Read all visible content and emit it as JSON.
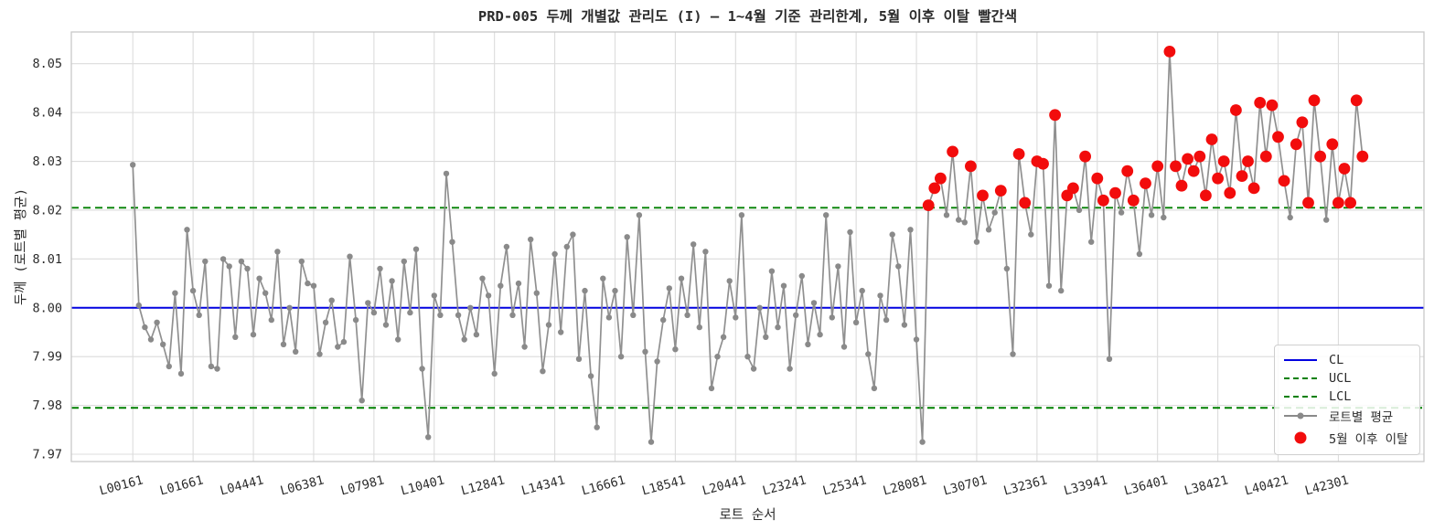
{
  "figure": {
    "title": "PRD-005 두께 개별값 관리도 (I) – 1~4월 기준 관리한계, 5월 이후 이탈 빨간색",
    "xlabel": "로트 순서",
    "ylabel": "두께 (로트별 평균)"
  },
  "colors": {
    "cl_blue": "#0202e0",
    "limit_green": "#008000",
    "series_gray": "#8a8a8a",
    "out_red": "#f20c0c",
    "grid": "#dcdcdc",
    "spine": "#c8c8c8",
    "text": "#2b2b2b"
  },
  "legend": {
    "items": [
      {
        "label": "CL",
        "type": "solid-line",
        "color": "#0202e0"
      },
      {
        "label": "UCL",
        "type": "dashed-line",
        "color": "#008000"
      },
      {
        "label": "LCL",
        "type": "dashed-line",
        "color": "#008000"
      },
      {
        "label": "로트별 평균",
        "type": "line-with-marker",
        "color": "#8a8a8a"
      },
      {
        "label": "5월 이후 이탈",
        "type": "dot",
        "color": "#f20c0c"
      }
    ]
  },
  "chart_data": {
    "type": "line",
    "title": "PRD-005 두께 개별값 관리도 (I) – 1~4월 기준 관리한계, 5월 이후 이탈 빨간색",
    "xlabel": "로트 순서",
    "ylabel": "두께 (로트별 평균)",
    "grid": true,
    "legend_position": "lower right",
    "cl": 8.0,
    "ucl": 8.0205,
    "lcl": 7.9795,
    "ylim": [
      7.9685,
      8.0565
    ],
    "y_ticks": [
      7.97,
      7.98,
      7.99,
      8.0,
      8.01,
      8.02,
      8.03,
      8.04,
      8.05
    ],
    "x_tick_every": 10,
    "x_tick_labels": [
      "L00161",
      "L01661",
      "L04441",
      "L06381",
      "L07981",
      "L10401",
      "L12841",
      "L14341",
      "L16661",
      "L18541",
      "L20441",
      "L23241",
      "L25341",
      "L28081",
      "L30701",
      "L32361",
      "L33941",
      "L36401",
      "L38421",
      "L40421",
      "L42301"
    ],
    "phase2_start_index": 132,
    "out_rule": "point is red when index >= phase2_start_index (May onward) and value > ucl",
    "series": [
      {
        "name": "로트별 평균",
        "values": [
          8.0293,
          8.0005,
          7.996,
          7.9935,
          7.997,
          7.9925,
          7.988,
          8.003,
          7.9865,
          8.016,
          8.0035,
          7.9985,
          8.0095,
          7.988,
          7.9875,
          8.01,
          8.0085,
          7.994,
          8.0095,
          8.008,
          7.9945,
          8.006,
          8.003,
          7.9975,
          8.0115,
          7.9925,
          8.0,
          7.991,
          8.0095,
          8.005,
          8.0045,
          7.9905,
          7.997,
          8.0015,
          7.992,
          7.993,
          8.0105,
          7.9975,
          7.981,
          8.001,
          7.999,
          8.008,
          7.9965,
          8.0055,
          7.9935,
          8.0095,
          7.999,
          8.012,
          7.9875,
          7.9735,
          8.0025,
          7.9985,
          8.0275,
          8.0135,
          7.9985,
          7.9935,
          8.0,
          7.9945,
          8.006,
          8.0025,
          7.9865,
          8.0045,
          8.0125,
          7.9985,
          8.005,
          7.992,
          8.014,
          8.003,
          7.987,
          7.9965,
          8.011,
          7.995,
          8.0125,
          8.015,
          7.9895,
          8.0035,
          7.986,
          7.9755,
          8.006,
          7.998,
          8.0035,
          7.99,
          8.0145,
          7.9985,
          8.019,
          7.991,
          7.9725,
          7.989,
          7.9975,
          8.004,
          7.9915,
          8.006,
          7.9985,
          8.013,
          7.996,
          8.0115,
          7.9835,
          7.99,
          7.994,
          8.0055,
          7.998,
          8.019,
          7.99,
          7.9875,
          8.0,
          7.994,
          8.0075,
          7.996,
          8.0045,
          7.9875,
          7.9985,
          8.0065,
          7.9925,
          8.001,
          7.9945,
          8.019,
          7.998,
          8.0085,
          7.992,
          8.0155,
          7.997,
          8.0035,
          7.9905,
          7.9835,
          8.0025,
          7.9975,
          8.015,
          8.0085,
          7.9965,
          8.016,
          7.9935,
          7.9725,
          8.021,
          8.0245,
          8.0265,
          8.019,
          8.032,
          8.018,
          8.0175,
          8.029,
          8.0135,
          8.023,
          8.016,
          8.0195,
          8.024,
          8.008,
          7.9905,
          8.0315,
          8.0215,
          8.015,
          8.03,
          8.0295,
          8.0045,
          8.0395,
          8.0035,
          8.023,
          8.0245,
          8.02,
          8.031,
          8.0135,
          8.0265,
          8.022,
          7.9895,
          8.0235,
          8.0195,
          8.028,
          8.022,
          8.011,
          8.0255,
          8.019,
          8.029,
          8.0185,
          8.0525,
          8.029,
          8.025,
          8.0305,
          8.028,
          8.031,
          8.023,
          8.0345,
          8.0265,
          8.03,
          8.0235,
          8.0405,
          8.027,
          8.03,
          8.0245,
          8.042,
          8.031,
          8.0415,
          8.035,
          8.026,
          8.0185,
          8.0335,
          8.038,
          8.0215,
          8.0425,
          8.031,
          8.018,
          8.0335,
          8.0215,
          8.0285,
          8.0215,
          8.0425,
          8.031
        ]
      }
    ]
  }
}
